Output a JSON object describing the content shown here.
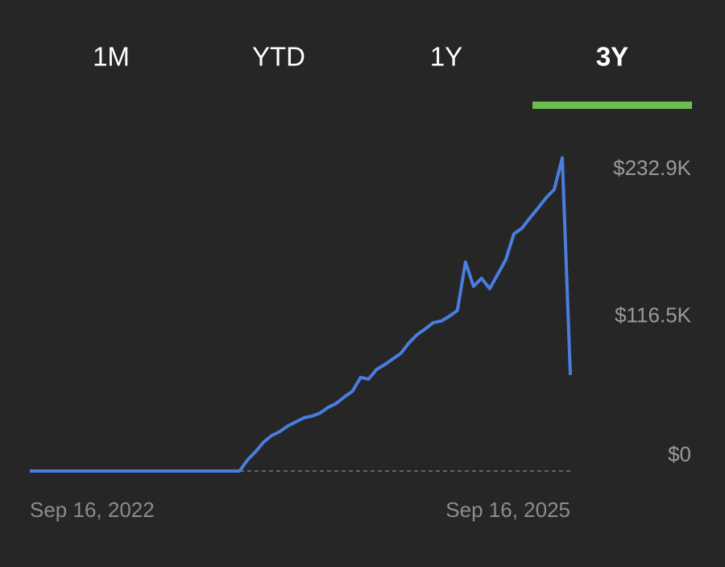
{
  "tabs": {
    "items": [
      "1M",
      "YTD",
      "1Y",
      "3Y"
    ],
    "selected": 3
  },
  "chart_data": {
    "type": "line",
    "categories": [
      "Sep 16, 2022",
      null,
      null,
      null,
      null,
      null,
      null,
      null,
      null,
      null,
      null,
      null,
      null,
      null,
      null,
      null,
      null,
      null,
      null,
      null,
      null,
      null,
      null,
      null,
      null,
      null,
      null,
      null,
      null,
      null,
      null,
      null,
      null,
      null,
      null,
      null,
      null,
      null,
      null,
      null,
      null,
      null,
      null,
      null,
      null,
      null,
      null,
      null,
      null,
      null,
      null,
      null,
      null,
      null,
      null,
      null,
      null,
      null,
      null,
      null,
      null,
      null,
      null,
      null,
      null,
      null,
      null,
      "Sep 16, 2025"
    ],
    "series": [
      {
        "color": "#4a7de0",
        "values": [
          0,
          0,
          0,
          0,
          0,
          0,
          0,
          0,
          0,
          0,
          0,
          0,
          0,
          0,
          0,
          0,
          0,
          0,
          0,
          0,
          0,
          0,
          0,
          0,
          0,
          0,
          0,
          8.9,
          15.3,
          22.9,
          28,
          31.2,
          35.6,
          38.8,
          42,
          43.3,
          45.8,
          50.3,
          53.4,
          58.5,
          63,
          73.8,
          72.5,
          80.2,
          84,
          88.4,
          92.9,
          101.1,
          107.5,
          112,
          117,
          118.3,
          122.1,
          126.6,
          164.8,
          145.7,
          152,
          143.8,
          155.2,
          166.7,
          187,
          191.5,
          199.7,
          207.4,
          215.6,
          222,
          247,
          75.7
        ]
      }
    ],
    "ylim": [
      0,
      250
    ],
    "yticks": [
      {
        "value": 0,
        "label": "$0"
      },
      {
        "value": 116.5,
        "label": "$116.5K"
      },
      {
        "value": 232.9,
        "label": "$232.9K"
      }
    ]
  }
}
